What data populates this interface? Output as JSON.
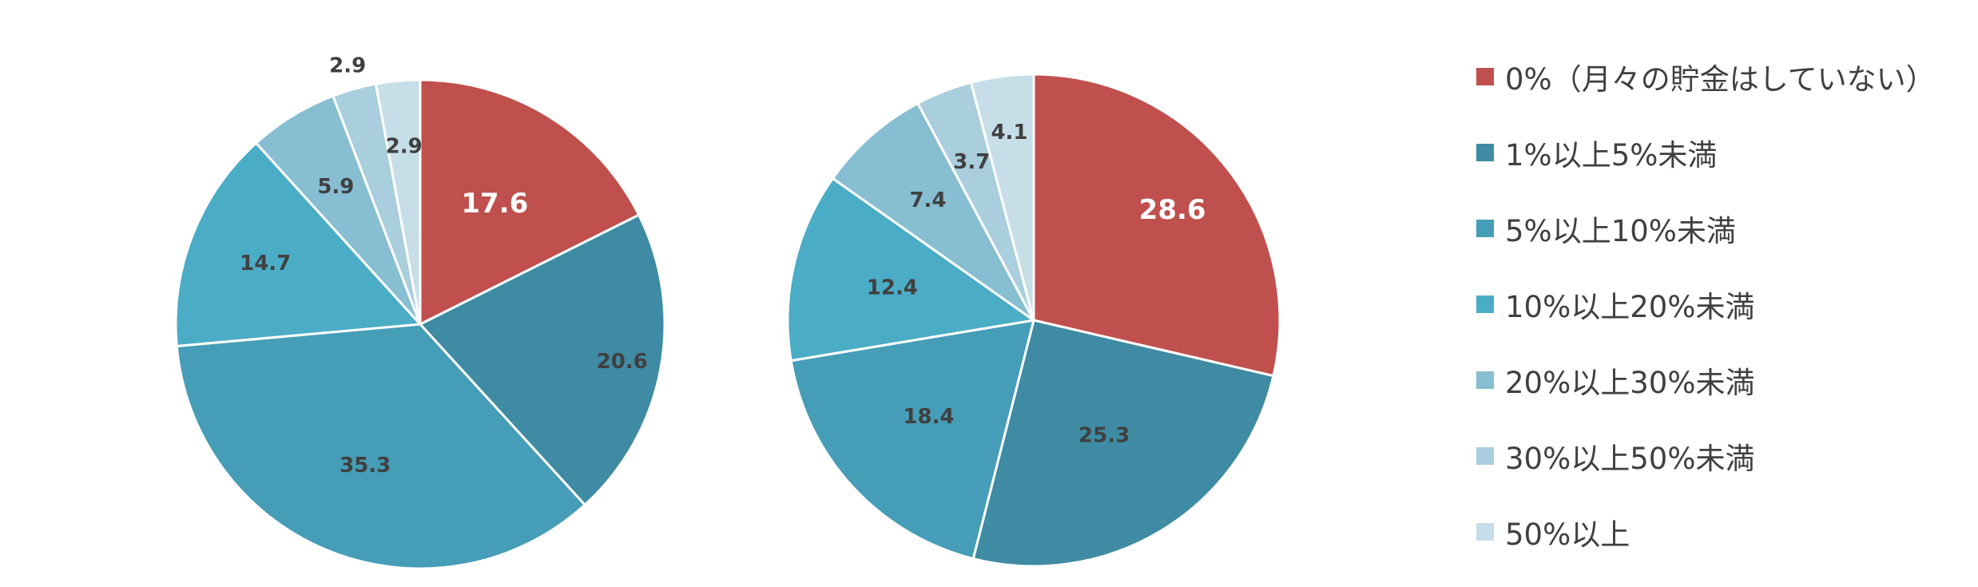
{
  "chart_data": [
    {
      "type": "pie",
      "categories": [
        "0%（月々の貯金はしていない）",
        "1%以上5%未満",
        "5%以上10%未満",
        "10%以上20%未満",
        "20%以上30%未満",
        "30%以上50%未満",
        "50%以上"
      ],
      "values": [
        17.6,
        20.6,
        35.3,
        14.7,
        5.9,
        2.9,
        2.9
      ],
      "labels": [
        "17.6",
        "20.6",
        "35.3",
        "14.7",
        "5.9",
        "2.9",
        "2.9"
      ],
      "colors": [
        "#C0504D",
        "#3E8BA3",
        "#469DB7",
        "#4BACC6",
        "#87BED2",
        "#A9CEDD",
        "#C6DEE8"
      ],
      "title": ""
    },
    {
      "type": "pie",
      "categories": [
        "0%（月々の貯金はしていない）",
        "1%以上5%未満",
        "5%以上10%未満",
        "10%以上20%未満",
        "20%以上30%未満",
        "30%以上50%未満",
        "50%以上"
      ],
      "values": [
        28.6,
        25.3,
        18.4,
        12.4,
        7.4,
        3.7,
        4.1
      ],
      "labels": [
        "28.6",
        "25.3",
        "18.4",
        "12.4",
        "7.4",
        "3.7",
        "4.1"
      ],
      "colors": [
        "#C0504D",
        "#3E8BA3",
        "#469DB7",
        "#4BACC6",
        "#87BED2",
        "#A9CEDD",
        "#C6DEE8"
      ],
      "title": ""
    }
  ],
  "legend": {
    "position": "right",
    "items": [
      {
        "label": "0%（月々の貯金はしていない）",
        "color": "#C0504D"
      },
      {
        "label": "1%以上5%未満",
        "color": "#3E8BA3"
      },
      {
        "label": "5%以上10%未満",
        "color": "#469DB7"
      },
      {
        "label": "10%以上20%未満",
        "color": "#4BACC6"
      },
      {
        "label": "20%以上30%未満",
        "color": "#87BED2"
      },
      {
        "label": "30%以上50%未満",
        "color": "#A9CEDD"
      },
      {
        "label": "50%以上",
        "color": "#C6DEE8"
      }
    ]
  }
}
